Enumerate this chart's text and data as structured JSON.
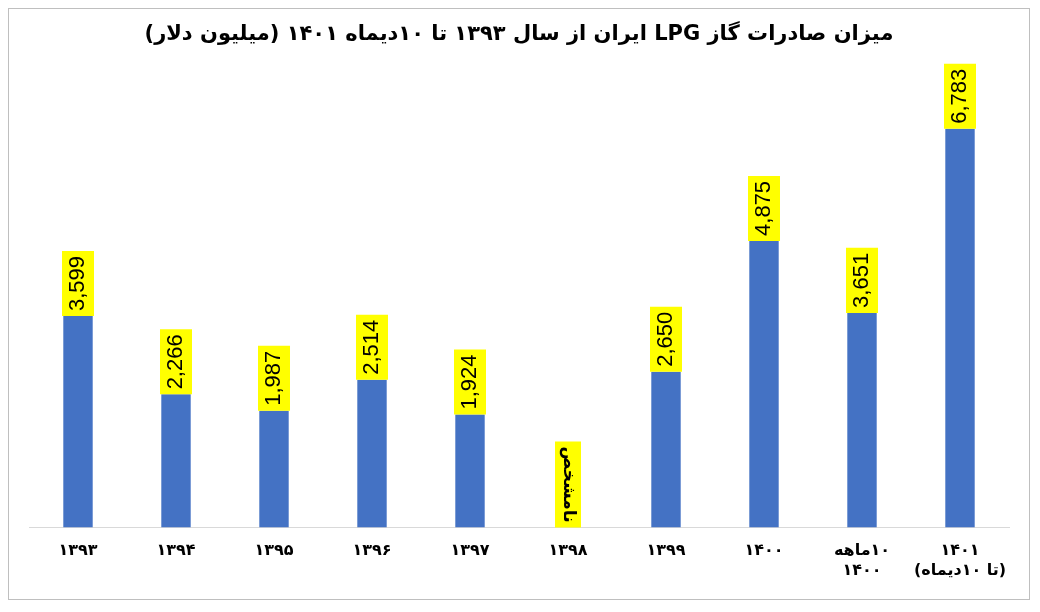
{
  "chart_data": {
    "type": "bar",
    "title": "میزان صادرات گاز LPG ایران از سال ۱۳۹۳ تا ۱۰دیماه ۱۴۰۱ (میلیون دلار)",
    "categories": [
      "۱۳۹۳",
      "۱۳۹۴",
      "۱۳۹۵",
      "۱۳۹۶",
      "۱۳۹۷",
      "۱۳۹۸",
      "۱۳۹۹",
      "۱۴۰۰",
      "۱۰ماهه\n۱۴۰۰",
      "۱۴۰۱\n(تا ۱۰دیماه)"
    ],
    "values": [
      3599,
      2266,
      1987,
      2514,
      1924,
      null,
      2650,
      4875,
      3651,
      6783
    ],
    "value_labels": [
      "3,599",
      "2,266",
      "1,987",
      "2,514",
      "1,924",
      "نامشخص",
      "2,650",
      "4,875",
      "3,651",
      "6,783"
    ],
    "color": "#4472c4",
    "grid": false,
    "legend": false
  }
}
